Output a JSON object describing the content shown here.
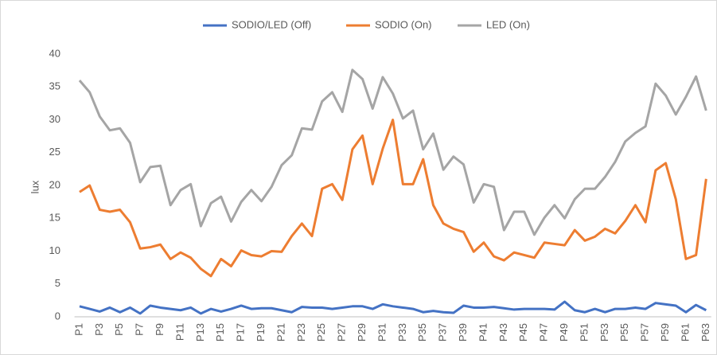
{
  "chart_data": {
    "type": "line",
    "y_label": "lux",
    "categories": [
      "P1",
      null,
      "P3",
      null,
      "P5",
      null,
      "P7",
      null,
      "P9",
      null,
      "P11",
      null,
      "P13",
      null,
      "P15",
      null,
      "P17",
      null,
      "P19",
      null,
      "P21",
      null,
      "P23",
      null,
      "P25",
      null,
      "P27",
      null,
      "P29",
      null,
      "P31",
      null,
      "P33",
      null,
      "P35",
      null,
      "P37",
      null,
      "P39",
      null,
      "P41",
      null,
      "P43",
      null,
      "P45",
      null,
      "P47",
      null,
      "P49",
      null,
      "P51",
      null,
      "P53",
      null,
      "P55",
      null,
      "P57",
      null,
      "P59",
      null,
      "P61",
      null,
      "P63"
    ],
    "series": [
      {
        "name": "SODIO/LED (Off)",
        "color": "#4472c4",
        "values": [
          1.6,
          1.2,
          0.8,
          1.4,
          0.7,
          1.4,
          0.5,
          1.7,
          1.4,
          1.2,
          1.0,
          1.4,
          0.5,
          1.2,
          0.8,
          1.2,
          1.7,
          1.2,
          1.3,
          1.3,
          1.0,
          0.7,
          1.5,
          1.4,
          1.4,
          1.2,
          1.4,
          1.6,
          1.6,
          1.2,
          1.9,
          1.6,
          1.4,
          1.2,
          0.7,
          0.9,
          0.7,
          0.6,
          1.7,
          1.4,
          1.4,
          1.5,
          1.3,
          1.1,
          1.2,
          1.2,
          1.2,
          1.1,
          2.3,
          1.0,
          0.7,
          1.2,
          0.7,
          1.2,
          1.2,
          1.4,
          1.2,
          2.1,
          1.9,
          1.7,
          0.7,
          1.8,
          1.0
        ]
      },
      {
        "name": "SODIO (On)",
        "color": "#ed7d31",
        "values": [
          19,
          20,
          16.3,
          16,
          16.3,
          14.4,
          10.4,
          10.6,
          11,
          8.8,
          9.8,
          9,
          7.3,
          6.2,
          8.8,
          7.7,
          10.1,
          9.4,
          9.2,
          10,
          9.9,
          12.3,
          14.2,
          12.3,
          19.5,
          20.2,
          17.8,
          25.5,
          27.6,
          20.2,
          25.6,
          30,
          20.2,
          20.2,
          24,
          17,
          14.2,
          13.4,
          12.9,
          9.9,
          11.3,
          9.2,
          8.6,
          9.8,
          9.4,
          9,
          11.3,
          11.1,
          10.9,
          13.2,
          11.6,
          12.2,
          13.4,
          12.7,
          14.6,
          17,
          14.4,
          22.3,
          23.4,
          17.9,
          8.8,
          9.4,
          21
        ]
      },
      {
        "name": "LED (On)",
        "color": "#a5a5a5",
        "values": [
          36,
          34.2,
          30.5,
          28.4,
          28.7,
          26.5,
          20.5,
          22.8,
          23,
          17,
          19.3,
          20.2,
          13.8,
          17.3,
          18.3,
          14.5,
          17.5,
          19.3,
          17.6,
          19.8,
          23.1,
          24.6,
          28.7,
          28.5,
          32.8,
          34.2,
          31.2,
          37.6,
          36.2,
          31.7,
          36.5,
          34,
          30.2,
          31.4,
          25.5,
          27.9,
          22.4,
          24.4,
          23.2,
          17.4,
          20.2,
          19.8,
          13.2,
          16,
          16,
          12.5,
          15.1,
          17,
          15,
          17.9,
          19.5,
          19.5,
          21.3,
          23.6,
          26.7,
          28,
          29,
          35.5,
          33.7,
          30.8,
          33.5,
          36.6,
          31.4
        ]
      }
    ],
    "ylim": [
      0,
      40
    ],
    "yticks": [
      0,
      5,
      10,
      15,
      20,
      25,
      30,
      35,
      40
    ],
    "grid": false,
    "legend": "top"
  }
}
